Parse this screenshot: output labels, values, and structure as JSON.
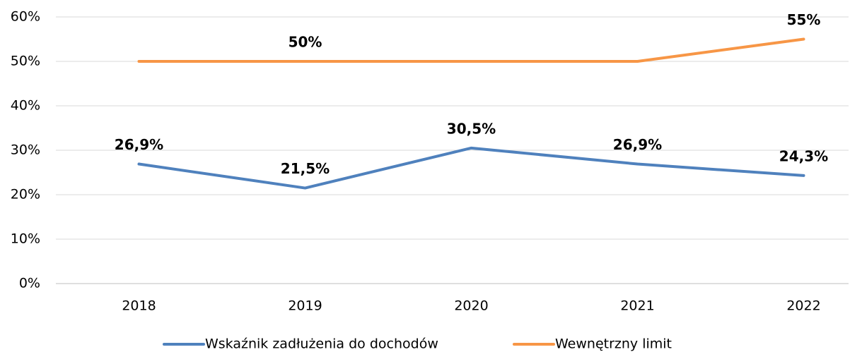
{
  "chart_data": {
    "type": "line",
    "categories": [
      "2018",
      "2019",
      "2020",
      "2021",
      "2022"
    ],
    "series": [
      {
        "name": "Wskaźnik zadłużenia do dochodów",
        "color": "#4f81bd",
        "values": [
          26.9,
          21.5,
          30.5,
          26.9,
          24.3
        ],
        "value_labels": [
          "26,9%",
          "21,5%",
          "30,5%",
          "26,9%",
          "24,3%"
        ]
      },
      {
        "name": "Wewnętrzny limit",
        "color": "#f79646",
        "values": [
          50,
          50,
          50,
          50,
          55
        ],
        "value_labels": [
          null,
          "50%",
          null,
          null,
          "55%"
        ]
      }
    ],
    "ylim": [
      0,
      60
    ],
    "yticks": [
      {
        "value": 0,
        "label": "0%"
      },
      {
        "value": 10,
        "label": "10%"
      },
      {
        "value": 20,
        "label": "20%"
      },
      {
        "value": 30,
        "label": "30%"
      },
      {
        "value": 40,
        "label": "40%"
      },
      {
        "value": 50,
        "label": "50%"
      },
      {
        "value": 60,
        "label": "60%"
      }
    ],
    "grid": true,
    "legend": "bottom"
  }
}
